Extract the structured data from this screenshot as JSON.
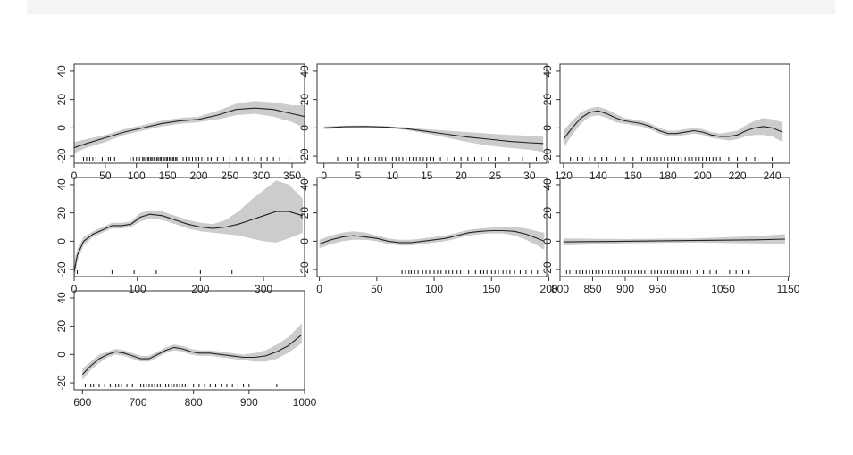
{
  "chart_data": [
    {
      "type": "line",
      "title": "",
      "xlabel": "",
      "ylabel": "",
      "xlim": [
        0,
        370
      ],
      "ylim": [
        -25,
        45
      ],
      "xticks": [
        0,
        50,
        100,
        150,
        200,
        250,
        300,
        350
      ],
      "yticks": [
        -20,
        0,
        20,
        40
      ],
      "x": [
        0,
        20,
        50,
        80,
        110,
        140,
        170,
        200,
        230,
        260,
        290,
        320,
        350,
        370
      ],
      "y": [
        -14,
        -11,
        -7,
        -3,
        0,
        3,
        5,
        6,
        9,
        13,
        14,
        13,
        10,
        8
      ],
      "lower": [
        -18,
        -14,
        -10,
        -5,
        -2,
        1,
        3,
        4,
        6,
        9,
        10,
        8,
        4,
        0
      ],
      "upper": [
        -10,
        -8,
        -5,
        -1,
        2,
        5,
        7,
        8,
        12,
        17,
        19,
        18,
        16,
        16
      ],
      "rug": [
        15,
        20,
        25,
        30,
        35,
        45,
        55,
        58,
        65,
        90,
        95,
        100,
        105,
        110,
        112,
        115,
        118,
        120,
        123,
        125,
        128,
        130,
        133,
        135,
        138,
        140,
        143,
        145,
        148,
        150,
        153,
        155,
        158,
        160,
        163,
        165,
        170,
        175,
        180,
        185,
        190,
        195,
        200,
        205,
        210,
        215,
        220,
        230,
        240,
        250,
        260,
        270,
        280,
        290,
        300,
        310,
        320,
        330,
        345
      ]
    },
    {
      "type": "line",
      "title": "",
      "xlabel": "",
      "ylabel": "",
      "xlim": [
        -1,
        32.5
      ],
      "ylim": [
        -25,
        45
      ],
      "xticks": [
        0,
        5,
        10,
        15,
        20,
        25,
        30
      ],
      "yticks": [
        -20,
        0,
        20,
        40
      ],
      "x": [
        0,
        3,
        6,
        9,
        12,
        15,
        18,
        21,
        24,
        27,
        30,
        32
      ],
      "y": [
        0,
        0.8,
        1,
        0.6,
        -0.5,
        -2.5,
        -4.5,
        -6.5,
        -8,
        -9.5,
        -10.5,
        -11
      ],
      "lower": [
        -1,
        0,
        0.3,
        0,
        -1.5,
        -4,
        -7,
        -10,
        -12.5,
        -14,
        -15.5,
        -17
      ],
      "upper": [
        1,
        1.6,
        1.7,
        1.2,
        0.5,
        -1,
        -2,
        -3,
        -4,
        -5,
        -5.5,
        -6
      ],
      "rug": [
        2,
        3.5,
        4,
        5,
        6,
        6.5,
        7,
        7.5,
        8,
        8.5,
        9,
        9.5,
        10,
        10.5,
        11,
        11.5,
        12,
        12.5,
        13,
        13.5,
        14,
        14.5,
        15,
        15.5,
        16,
        17,
        18,
        19,
        20,
        21,
        22,
        23,
        24,
        25,
        27,
        29,
        31
      ]
    },
    {
      "type": "line",
      "title": "",
      "xlabel": "",
      "ylabel": "",
      "xlim": [
        118,
        250
      ],
      "ylim": [
        -25,
        45
      ],
      "xticks": [
        120,
        140,
        160,
        180,
        200,
        220,
        240
      ],
      "yticks": [
        -20,
        0,
        20,
        40
      ],
      "x": [
        120,
        125,
        130,
        135,
        140,
        145,
        150,
        155,
        160,
        165,
        170,
        175,
        180,
        185,
        190,
        195,
        200,
        205,
        210,
        215,
        220,
        225,
        230,
        235,
        240,
        246
      ],
      "y": [
        -8,
        0,
        7,
        11,
        12,
        10,
        7,
        5,
        4,
        3,
        1,
        -2,
        -4,
        -4,
        -3,
        -2,
        -3,
        -5,
        -6,
        -6,
        -5,
        -2,
        0,
        1,
        0,
        -3
      ],
      "lower": [
        -14,
        -5,
        3,
        8,
        9,
        7,
        4,
        3,
        2,
        1,
        -1,
        -4,
        -6,
        -6,
        -5,
        -4,
        -5,
        -7,
        -8,
        -9,
        -8,
        -6,
        -5,
        -5,
        -6,
        -10
      ],
      "upper": [
        -2,
        5,
        11,
        14,
        15,
        13,
        10,
        7,
        6,
        5,
        3,
        0,
        -2,
        -2,
        -1,
        0,
        -1,
        -3,
        -4,
        -3,
        -2,
        2,
        5,
        7,
        6,
        4
      ],
      "rug": [
        124,
        128,
        131,
        135,
        138,
        142,
        145,
        150,
        155,
        160,
        165,
        168,
        170,
        172,
        174,
        176,
        178,
        180,
        182,
        184,
        186,
        188,
        190,
        192,
        194,
        196,
        198,
        200,
        202,
        204,
        206,
        208,
        210,
        215,
        220,
        225,
        230,
        240
      ]
    },
    {
      "type": "line",
      "title": "",
      "xlabel": "",
      "ylabel": "",
      "xlim": [
        0,
        365
      ],
      "ylim": [
        -25,
        45
      ],
      "xticks": [
        0,
        100,
        200,
        300
      ],
      "yticks": [
        -20,
        0,
        20,
        40
      ],
      "x": [
        0,
        5,
        15,
        30,
        45,
        60,
        75,
        90,
        105,
        120,
        140,
        160,
        180,
        200,
        220,
        240,
        260,
        280,
        300,
        320,
        340,
        362
      ],
      "y": [
        -22,
        -10,
        0,
        5,
        8,
        11,
        11,
        12,
        17,
        19,
        18,
        15,
        12,
        10,
        9,
        10,
        12,
        15,
        18,
        21,
        21,
        18
      ],
      "lower": [
        -30,
        -14,
        -3,
        3,
        6,
        9,
        9,
        10,
        14,
        16,
        15,
        12,
        9,
        7,
        6,
        5,
        4,
        2,
        0,
        -1,
        2,
        6
      ],
      "upper": [
        -14,
        -6,
        3,
        7,
        10,
        13,
        13,
        14,
        20,
        22,
        21,
        18,
        15,
        13,
        12,
        15,
        21,
        29,
        36,
        43,
        40,
        30
      ],
      "rug": [
        5,
        60,
        95,
        130,
        200,
        250
      ]
    },
    {
      "type": "line",
      "title": "",
      "xlabel": "",
      "ylabel": "",
      "xlim": [
        -2,
        198
      ],
      "ylim": [
        -25,
        45
      ],
      "xticks": [
        0,
        50,
        100,
        150,
        200
      ],
      "yticks": [
        -20,
        0,
        20,
        40
      ],
      "x": [
        0,
        10,
        20,
        30,
        40,
        50,
        60,
        70,
        80,
        90,
        100,
        110,
        120,
        130,
        140,
        150,
        160,
        170,
        180,
        190,
        196
      ],
      "y": [
        -2,
        1,
        3,
        4,
        3,
        2,
        0,
        -1,
        -1,
        0,
        1,
        2,
        4,
        6,
        7,
        7.5,
        7.5,
        7,
        5,
        2,
        0
      ],
      "lower": [
        -5,
        -2,
        0,
        1,
        1,
        0,
        -2,
        -3,
        -3,
        -2,
        -1,
        0,
        2,
        4,
        5,
        5.5,
        5.5,
        4,
        1,
        -3,
        -6
      ],
      "upper": [
        1,
        4,
        6,
        7,
        6,
        4,
        2,
        1,
        1,
        2,
        3,
        4,
        6,
        8,
        9,
        9.5,
        10,
        10,
        9,
        7,
        6
      ],
      "rug": [
        72,
        75,
        78,
        80,
        83,
        86,
        90,
        93,
        96,
        100,
        103,
        106,
        110,
        113,
        116,
        120,
        123,
        126,
        130,
        133,
        136,
        140,
        143,
        146,
        150,
        153,
        156,
        160,
        163,
        166,
        170,
        175,
        180,
        185,
        190
      ]
    },
    {
      "type": "line",
      "title": "",
      "xlabel": "",
      "ylabel": "",
      "xlim": [
        800,
        1152
      ],
      "ylim": [
        -25,
        45
      ],
      "xticks": [
        800,
        850,
        900,
        950,
        1050,
        1150
      ],
      "yticks": [
        -20,
        0,
        20,
        40
      ],
      "x": [
        805,
        900,
        1000,
        1100,
        1145
      ],
      "y": [
        -0.5,
        0,
        0.5,
        1,
        1.5
      ],
      "lower": [
        -3,
        -1.5,
        -1,
        -1.5,
        -2
      ],
      "upper": [
        2,
        1.5,
        2,
        3.5,
        5
      ],
      "rug": [
        810,
        815,
        820,
        825,
        830,
        835,
        840,
        845,
        850,
        855,
        860,
        865,
        870,
        875,
        880,
        885,
        890,
        895,
        900,
        905,
        910,
        915,
        920,
        925,
        930,
        935,
        940,
        945,
        950,
        955,
        960,
        965,
        970,
        975,
        980,
        985,
        990,
        995,
        1000,
        1010,
        1020,
        1030,
        1040,
        1050,
        1060,
        1070,
        1080,
        1090
      ]
    },
    {
      "type": "line",
      "title": "",
      "xlabel": "",
      "ylabel": "",
      "xlim": [
        585,
        1000
      ],
      "ylim": [
        -25,
        45
      ],
      "xticks": [
        600,
        700,
        800,
        900,
        1000
      ],
      "yticks": [
        -20,
        0,
        20,
        40
      ],
      "x": [
        600,
        615,
        630,
        645,
        660,
        675,
        690,
        705,
        720,
        735,
        750,
        765,
        780,
        795,
        810,
        830,
        850,
        870,
        890,
        910,
        930,
        950,
        970,
        995
      ],
      "y": [
        -14,
        -8,
        -3,
        0,
        2,
        1,
        -1,
        -3,
        -3,
        0,
        3,
        5,
        4,
        2,
        1,
        1,
        0,
        -1,
        -2,
        -2,
        -1,
        2,
        6,
        14
      ],
      "lower": [
        -18,
        -11,
        -6,
        -2,
        0,
        -1,
        -3,
        -5,
        -5,
        -2,
        1,
        3,
        2,
        0,
        -1,
        -1,
        -2,
        -3,
        -4,
        -5,
        -5,
        -3,
        1,
        8
      ],
      "upper": [
        -10,
        -5,
        0,
        2,
        4,
        3,
        1,
        -1,
        -1,
        2,
        5,
        7,
        6,
        4,
        3,
        3,
        2,
        1,
        0,
        1,
        3,
        7,
        12,
        22
      ],
      "rug": [
        605,
        610,
        615,
        620,
        630,
        640,
        650,
        655,
        660,
        665,
        670,
        680,
        690,
        700,
        705,
        710,
        715,
        720,
        725,
        730,
        735,
        740,
        745,
        750,
        755,
        760,
        765,
        770,
        775,
        780,
        785,
        790,
        800,
        810,
        820,
        830,
        840,
        850,
        860,
        870,
        880,
        890,
        900,
        950
      ]
    }
  ]
}
